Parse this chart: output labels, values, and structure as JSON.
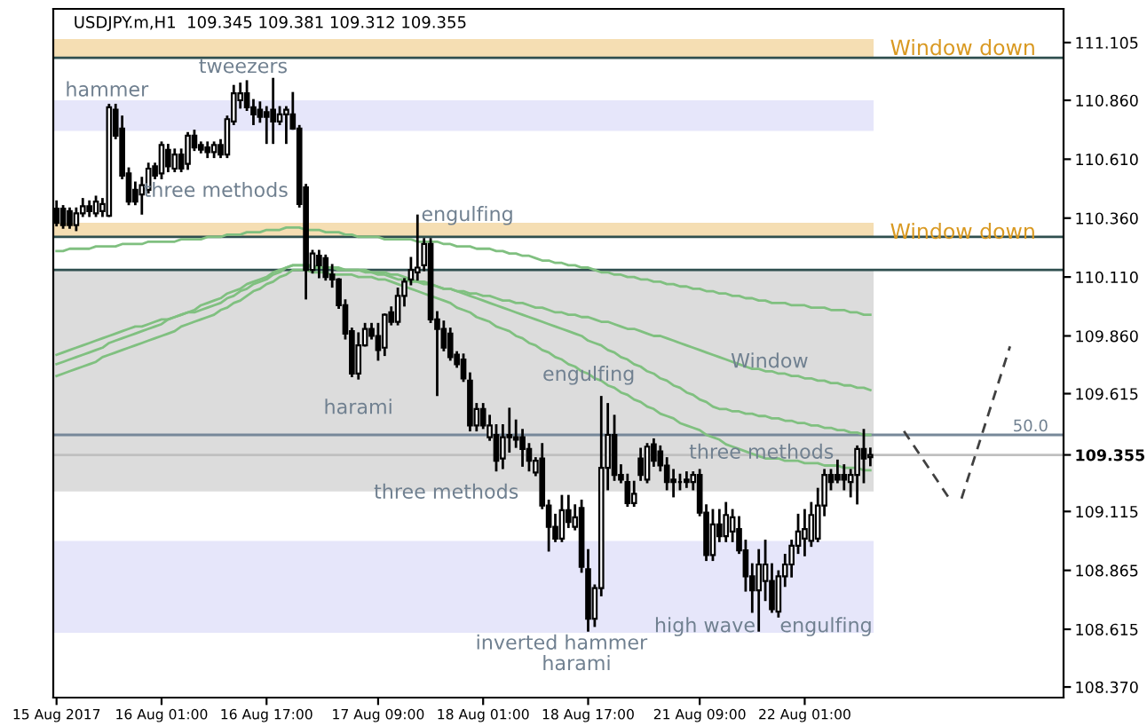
{
  "chart_data": {
    "type": "candlestick",
    "title": "USDJPY.m,H1  109.345 109.381 109.312 109.355",
    "categories": [
      "15 Aug 2017",
      null,
      null,
      null,
      null,
      null,
      null,
      null,
      null,
      null,
      null,
      null,
      null,
      null,
      null,
      null,
      "16 Aug 01:00",
      null,
      null,
      null,
      null,
      null,
      null,
      null,
      null,
      null,
      null,
      null,
      null,
      null,
      null,
      null,
      "16 Aug 17:00",
      null,
      null,
      null,
      null,
      null,
      null,
      null,
      null,
      null,
      null,
      null,
      null,
      null,
      null,
      null,
      null,
      "17 Aug 09:00",
      null,
      null,
      null,
      null,
      null,
      null,
      null,
      null,
      null,
      null,
      null,
      null,
      null,
      null,
      null,
      "18 Aug 01:00",
      null,
      null,
      null,
      null,
      null,
      null,
      null,
      null,
      null,
      null,
      null,
      null,
      null,
      null,
      null,
      "18 Aug 17:00",
      null,
      null,
      null,
      null,
      null,
      null,
      null,
      null,
      null,
      null,
      null,
      null,
      null,
      null,
      null,
      null,
      "21 Aug 09:00",
      null,
      null,
      null,
      null,
      null,
      null,
      null,
      null,
      null,
      null,
      null,
      null,
      null,
      null,
      null,
      "22 Aug 01:00",
      null,
      null,
      null,
      null,
      null,
      null,
      null,
      null,
      null,
      null
    ],
    "ohlc": [
      [
        110.4,
        110.43,
        110.33,
        110.34
      ],
      [
        110.4,
        110.41,
        110.32,
        110.33
      ],
      [
        110.39,
        110.4,
        110.32,
        110.33
      ],
      [
        110.33,
        110.4,
        110.31,
        110.38
      ],
      [
        110.38,
        110.44,
        110.37,
        110.41
      ],
      [
        110.41,
        110.43,
        110.37,
        110.39
      ],
      [
        110.38,
        110.45,
        110.37,
        110.43
      ],
      [
        110.39,
        110.44,
        110.37,
        110.42
      ],
      [
        110.37,
        110.84,
        110.37,
        110.83
      ],
      [
        110.82,
        110.84,
        110.7,
        110.71
      ],
      [
        110.74,
        110.79,
        110.53,
        110.54
      ],
      [
        110.55,
        110.57,
        110.42,
        110.43
      ],
      [
        110.48,
        110.51,
        110.42,
        110.43
      ],
      [
        110.46,
        110.53,
        110.38,
        110.5
      ],
      [
        110.48,
        110.59,
        110.47,
        110.57
      ],
      [
        110.58,
        110.59,
        110.53,
        110.54
      ],
      [
        110.55,
        110.68,
        110.53,
        110.67
      ],
      [
        110.65,
        110.67,
        110.56,
        110.58
      ],
      [
        110.57,
        110.65,
        110.56,
        110.63
      ],
      [
        110.63,
        110.65,
        110.56,
        110.57
      ],
      [
        110.59,
        110.72,
        110.57,
        110.71
      ],
      [
        110.71,
        110.73,
        110.65,
        110.66
      ],
      [
        110.67,
        110.68,
        110.64,
        110.65
      ],
      [
        110.66,
        110.68,
        110.62,
        110.64
      ],
      [
        110.64,
        110.68,
        110.62,
        110.67
      ],
      [
        110.67,
        110.69,
        110.62,
        110.63
      ],
      [
        110.63,
        110.79,
        110.62,
        110.78
      ],
      [
        110.77,
        110.92,
        110.76,
        110.89
      ],
      [
        110.86,
        110.93,
        110.83,
        110.89
      ],
      [
        110.89,
        110.94,
        110.82,
        110.83
      ],
      [
        110.83,
        110.86,
        110.76,
        110.8
      ],
      [
        110.82,
        110.85,
        110.77,
        110.79
      ],
      [
        110.81,
        110.83,
        110.68,
        110.79
      ],
      [
        110.82,
        110.95,
        110.68,
        110.77
      ],
      [
        110.77,
        110.83,
        110.76,
        110.8
      ],
      [
        110.8,
        110.83,
        110.68,
        110.82
      ],
      [
        110.8,
        110.89,
        110.74,
        110.74
      ],
      [
        110.74,
        110.75,
        110.41,
        110.42
      ],
      [
        110.49,
        110.5,
        110.02,
        110.14
      ],
      [
        110.14,
        110.22,
        110.13,
        110.21
      ],
      [
        110.2,
        110.22,
        110.11,
        110.16
      ],
      [
        110.19,
        110.2,
        110.1,
        110.11
      ],
      [
        110.12,
        110.16,
        110.07,
        110.1
      ],
      [
        110.1,
        110.1,
        109.98,
        109.99
      ],
      [
        109.99,
        110.01,
        109.85,
        109.87
      ],
      [
        109.88,
        109.89,
        109.69,
        109.7
      ],
      [
        109.7,
        109.87,
        109.68,
        109.82
      ],
      [
        109.82,
        109.91,
        109.82,
        109.89
      ],
      [
        109.89,
        109.91,
        109.85,
        109.86
      ],
      [
        109.86,
        109.91,
        109.76,
        109.8
      ],
      [
        109.81,
        109.95,
        109.78,
        109.95
      ],
      [
        109.96,
        109.98,
        109.91,
        109.92
      ],
      [
        109.92,
        110.06,
        109.91,
        110.03
      ],
      [
        110.03,
        110.1,
        109.99,
        110.09
      ],
      [
        110.1,
        110.19,
        110.08,
        110.14
      ],
      [
        110.13,
        110.37,
        110.1,
        110.15
      ],
      [
        110.16,
        110.27,
        110.14,
        110.25
      ],
      [
        110.25,
        110.27,
        109.92,
        109.93
      ],
      [
        109.93,
        109.96,
        109.61,
        109.89
      ],
      [
        109.89,
        109.92,
        109.8,
        109.81
      ],
      [
        109.87,
        109.89,
        109.76,
        109.77
      ],
      [
        109.78,
        109.79,
        109.73,
        109.74
      ],
      [
        109.76,
        109.78,
        109.67,
        109.68
      ],
      [
        109.67,
        109.7,
        109.46,
        109.48
      ],
      [
        109.48,
        109.57,
        109.46,
        109.55
      ],
      [
        109.55,
        109.57,
        109.47,
        109.48
      ],
      [
        109.43,
        109.52,
        109.42,
        109.48
      ],
      [
        109.44,
        109.48,
        109.29,
        109.33
      ],
      [
        109.34,
        109.48,
        109.3,
        109.43
      ],
      [
        109.44,
        109.55,
        109.37,
        109.43
      ],
      [
        109.43,
        109.5,
        109.39,
        109.42
      ],
      [
        109.43,
        109.46,
        109.31,
        109.38
      ],
      [
        109.38,
        109.4,
        109.29,
        109.33
      ],
      [
        109.28,
        109.34,
        109.27,
        109.33
      ],
      [
        109.34,
        109.4,
        109.13,
        109.14
      ],
      [
        109.14,
        109.16,
        108.95,
        109.05
      ],
      [
        109.05,
        109.1,
        108.99,
        109.0
      ],
      [
        109.0,
        109.18,
        108.99,
        109.12
      ],
      [
        109.12,
        109.18,
        109.05,
        109.07
      ],
      [
        109.05,
        109.14,
        109.04,
        109.09
      ],
      [
        109.13,
        109.16,
        108.86,
        108.88
      ],
      [
        108.87,
        108.95,
        108.61,
        108.66
      ],
      [
        108.66,
        108.8,
        108.63,
        108.79
      ],
      [
        108.79,
        109.6,
        108.76,
        109.3
      ],
      [
        109.3,
        109.57,
        109.21,
        109.44
      ],
      [
        109.44,
        109.52,
        109.25,
        109.27
      ],
      [
        109.27,
        109.31,
        109.24,
        109.25
      ],
      [
        109.24,
        109.27,
        109.14,
        109.15
      ],
      [
        109.15,
        109.24,
        109.14,
        109.19
      ],
      [
        109.34,
        109.38,
        109.25,
        109.27
      ],
      [
        109.25,
        109.4,
        109.24,
        109.39
      ],
      [
        109.4,
        109.42,
        109.31,
        109.33
      ],
      [
        109.37,
        109.39,
        109.29,
        109.31
      ],
      [
        109.31,
        109.34,
        109.21,
        109.24
      ],
      [
        109.25,
        109.29,
        109.18,
        109.24
      ],
      [
        109.24,
        109.27,
        109.21,
        109.24
      ],
      [
        109.25,
        109.28,
        109.22,
        109.24
      ],
      [
        109.24,
        109.28,
        109.21,
        109.27
      ],
      [
        109.27,
        109.29,
        109.1,
        109.11
      ],
      [
        109.11,
        109.14,
        108.91,
        108.93
      ],
      [
        108.93,
        109.12,
        108.91,
        109.06
      ],
      [
        109.06,
        109.12,
        108.99,
        109.01
      ],
      [
        109.01,
        109.15,
        108.99,
        109.1
      ],
      [
        109.03,
        109.12,
        108.99,
        109.09
      ],
      [
        109.04,
        109.09,
        108.94,
        108.95
      ],
      [
        108.95,
        108.99,
        108.78,
        108.84
      ],
      [
        108.84,
        108.89,
        108.69,
        108.78
      ],
      [
        108.78,
        108.95,
        108.61,
        108.89
      ],
      [
        108.82,
        108.99,
        108.74,
        108.89
      ],
      [
        108.82,
        108.89,
        108.69,
        108.7
      ],
      [
        108.69,
        108.86,
        108.67,
        108.84
      ],
      [
        108.84,
        108.93,
        108.8,
        108.89
      ],
      [
        108.89,
        108.99,
        108.84,
        108.97
      ],
      [
        108.97,
        109.1,
        108.94,
        109.03
      ],
      [
        109.0,
        109.12,
        108.93,
        109.04
      ],
      [
        108.99,
        109.15,
        108.97,
        109.1
      ],
      [
        109.0,
        109.21,
        108.99,
        109.14
      ],
      [
        109.14,
        109.29,
        109.1,
        109.27
      ],
      [
        109.27,
        109.29,
        109.21,
        109.24
      ],
      [
        109.27,
        109.33,
        109.24,
        109.25
      ],
      [
        109.27,
        109.31,
        109.21,
        109.25
      ],
      [
        109.24,
        109.29,
        109.18,
        109.27
      ],
      [
        109.27,
        109.39,
        109.15,
        109.38
      ],
      [
        109.38,
        109.46,
        109.24,
        109.34
      ],
      [
        109.345,
        109.381,
        109.312,
        109.355
      ]
    ],
    "series": [
      {
        "type": "line",
        "color": "#80c080",
        "values": [
          110.22,
          110.22,
          110.23,
          110.23,
          110.23,
          110.23,
          110.24,
          110.24,
          110.24,
          110.24,
          110.25,
          110.25,
          110.25,
          110.25,
          110.26,
          110.26,
          110.26,
          110.26,
          110.26,
          110.27,
          110.27,
          110.27,
          110.27,
          110.28,
          110.28,
          110.28,
          110.29,
          110.29,
          110.29,
          110.3,
          110.3,
          110.3,
          110.31,
          110.31,
          110.31,
          110.32,
          110.32,
          110.32,
          110.31,
          110.31,
          110.31,
          110.3,
          110.3,
          110.3,
          110.29,
          110.29,
          110.28,
          110.28,
          110.28,
          110.28,
          110.27,
          110.27,
          110.27,
          110.27,
          110.27,
          110.26,
          110.26,
          110.26,
          110.26,
          110.25,
          110.25,
          110.24,
          110.24,
          110.24,
          110.23,
          110.23,
          110.23,
          110.22,
          110.22,
          110.21,
          110.21,
          110.2,
          110.2,
          110.19,
          110.18,
          110.18,
          110.17,
          110.17,
          110.16,
          110.16,
          110.15,
          110.15,
          110.14,
          110.13,
          110.13,
          110.12,
          110.12,
          110.11,
          110.11,
          110.1,
          110.1,
          110.09,
          110.09,
          110.08,
          110.08,
          110.07,
          110.07,
          110.06,
          110.06,
          110.05,
          110.05,
          110.04,
          110.04,
          110.03,
          110.03,
          110.02,
          110.02,
          110.01,
          110.01,
          110.0,
          110.0,
          110.0,
          109.99,
          109.99,
          109.99,
          109.98,
          109.98,
          109.98,
          109.97,
          109.97,
          109.97,
          109.96,
          109.96,
          109.95,
          109.95
        ]
      },
      {
        "type": "line",
        "color": "#80c080",
        "values": [
          109.78,
          109.79,
          109.8,
          109.81,
          109.82,
          109.83,
          109.84,
          109.85,
          109.86,
          109.87,
          109.88,
          109.89,
          109.9,
          109.9,
          109.91,
          109.92,
          109.93,
          109.93,
          109.94,
          109.95,
          109.96,
          109.96,
          109.97,
          109.98,
          109.99,
          110.0,
          110.02,
          110.03,
          110.05,
          110.06,
          110.08,
          110.09,
          110.1,
          110.12,
          110.13,
          110.15,
          110.16,
          110.16,
          110.16,
          110.15,
          110.15,
          110.15,
          110.15,
          110.14,
          110.14,
          110.14,
          110.14,
          110.13,
          110.13,
          110.12,
          110.12,
          110.11,
          110.1,
          110.1,
          110.09,
          110.09,
          110.08,
          110.08,
          110.07,
          110.06,
          110.06,
          110.05,
          110.05,
          110.04,
          110.04,
          110.03,
          110.03,
          110.02,
          110.01,
          110.01,
          110.0,
          110.0,
          109.99,
          109.98,
          109.98,
          109.97,
          109.96,
          109.96,
          109.95,
          109.95,
          109.94,
          109.94,
          109.93,
          109.92,
          109.92,
          109.91,
          109.9,
          109.89,
          109.89,
          109.88,
          109.87,
          109.86,
          109.86,
          109.85,
          109.84,
          109.83,
          109.82,
          109.81,
          109.8,
          109.79,
          109.78,
          109.77,
          109.76,
          109.75,
          109.74,
          109.73,
          109.72,
          109.72,
          109.71,
          109.71,
          109.7,
          109.7,
          109.69,
          109.69,
          109.68,
          109.68,
          109.67,
          109.67,
          109.66,
          109.66,
          109.65,
          109.65,
          109.64,
          109.64,
          109.63
        ]
      },
      {
        "type": "line",
        "color": "#80c080",
        "values": [
          109.74,
          109.75,
          109.76,
          109.77,
          109.78,
          109.79,
          109.8,
          109.81,
          109.83,
          109.84,
          109.85,
          109.86,
          109.87,
          109.88,
          109.89,
          109.9,
          109.91,
          109.93,
          109.94,
          109.95,
          109.96,
          109.97,
          109.99,
          110.0,
          110.01,
          110.02,
          110.04,
          110.05,
          110.06,
          110.08,
          110.09,
          110.1,
          110.11,
          110.13,
          110.14,
          110.15,
          110.16,
          110.16,
          110.16,
          110.16,
          110.15,
          110.15,
          110.15,
          110.15,
          110.14,
          110.14,
          110.14,
          110.14,
          110.13,
          110.13,
          110.13,
          110.12,
          110.12,
          110.11,
          110.1,
          110.09,
          110.09,
          110.08,
          110.07,
          110.06,
          110.06,
          110.05,
          110.04,
          110.03,
          110.02,
          110.01,
          110.0,
          109.99,
          109.98,
          109.97,
          109.96,
          109.95,
          109.94,
          109.93,
          109.92,
          109.91,
          109.9,
          109.89,
          109.88,
          109.87,
          109.86,
          109.84,
          109.83,
          109.82,
          109.8,
          109.79,
          109.77,
          109.76,
          109.74,
          109.73,
          109.71,
          109.7,
          109.68,
          109.67,
          109.65,
          109.64,
          109.62,
          109.61,
          109.59,
          109.58,
          109.56,
          109.55,
          109.55,
          109.54,
          109.54,
          109.53,
          109.53,
          109.52,
          109.52,
          109.51,
          109.51,
          109.5,
          109.5,
          109.49,
          109.49,
          109.48,
          109.48,
          109.47,
          109.47,
          109.46,
          109.46,
          109.45,
          109.45,
          109.44,
          109.44
        ]
      },
      {
        "type": "line",
        "color": "#80c080",
        "values": [
          109.69,
          109.7,
          109.71,
          109.72,
          109.73,
          109.74,
          109.75,
          109.77,
          109.78,
          109.79,
          109.8,
          109.81,
          109.82,
          109.83,
          109.84,
          109.85,
          109.86,
          109.87,
          109.88,
          109.9,
          109.91,
          109.92,
          109.93,
          109.94,
          109.95,
          109.97,
          109.98,
          110.0,
          110.01,
          110.03,
          110.05,
          110.06,
          110.08,
          110.09,
          110.11,
          110.12,
          110.14,
          110.14,
          110.14,
          110.13,
          110.13,
          110.13,
          110.12,
          110.12,
          110.12,
          110.12,
          110.11,
          110.11,
          110.11,
          110.1,
          110.1,
          110.09,
          110.08,
          110.07,
          110.06,
          110.05,
          110.04,
          110.03,
          110.02,
          110.01,
          110.0,
          109.98,
          109.97,
          109.96,
          109.94,
          109.93,
          109.92,
          109.9,
          109.89,
          109.88,
          109.86,
          109.85,
          109.83,
          109.82,
          109.8,
          109.79,
          109.77,
          109.76,
          109.74,
          109.73,
          109.71,
          109.7,
          109.68,
          109.67,
          109.65,
          109.64,
          109.62,
          109.61,
          109.59,
          109.58,
          109.56,
          109.55,
          109.53,
          109.52,
          109.51,
          109.49,
          109.48,
          109.47,
          109.46,
          109.44,
          109.43,
          109.42,
          109.4,
          109.39,
          109.38,
          109.37,
          109.36,
          109.35,
          109.34,
          109.34,
          109.34,
          109.33,
          109.33,
          109.33,
          109.32,
          109.32,
          109.32,
          109.31,
          109.31,
          109.31,
          109.3,
          109.3,
          109.3,
          109.29,
          109.29
        ]
      }
    ],
    "ylim": [
      108.325,
      111.248
    ],
    "yticks": [
      111.105,
      {
        "value": 110.86,
        "label": "110.860"
      },
      {
        "value": 110.61,
        "label": "110.610"
      },
      {
        "value": 110.36,
        "label": "110.360"
      },
      {
        "value": 110.11,
        "label": "110.110"
      },
      {
        "value": 109.86,
        "label": "109.860"
      },
      109.615,
      109.355,
      109.115,
      108.865,
      108.615,
      {
        "value": 108.37,
        "label": "108.370"
      }
    ],
    "bands": [
      {
        "axis": "y",
        "from": 111.04,
        "to": 111.12,
        "color": "#f5deb3",
        "label": "Window down"
      },
      {
        "axis": "y",
        "from": 110.73,
        "to": 110.86,
        "color": "#e6e6fa"
      },
      {
        "axis": "y",
        "from": 110.28,
        "to": 110.34,
        "color": "#f5deb3",
        "label": "Window down"
      },
      {
        "axis": "y",
        "from": 109.2,
        "to": 110.14,
        "color": "#dcdcdc"
      },
      {
        "axis": "y",
        "from": 108.6,
        "to": 108.99,
        "color": "#e6e6fa"
      }
    ],
    "ref_lines": [
      {
        "axis": "y",
        "value": 111.04,
        "color": "#2f4f4f"
      },
      {
        "axis": "y",
        "value": 110.28,
        "color": "#2f4f4f"
      },
      {
        "axis": "y",
        "value": 110.14,
        "color": "#2f4f4f"
      },
      {
        "axis": "y",
        "value": 109.44,
        "color": "#778899"
      },
      {
        "axis": "y",
        "value": 109.355,
        "color": "#c0c0c0"
      }
    ],
    "annotations": [
      "hammer",
      "tweezers",
      "three methods",
      "engulfing",
      "harami",
      "engulfing",
      "Window",
      "three methods",
      "three methods",
      "inverted hammer",
      "harami",
      "high wave",
      "engulfing",
      "50.0"
    ],
    "grid": false,
    "legend": false
  }
}
